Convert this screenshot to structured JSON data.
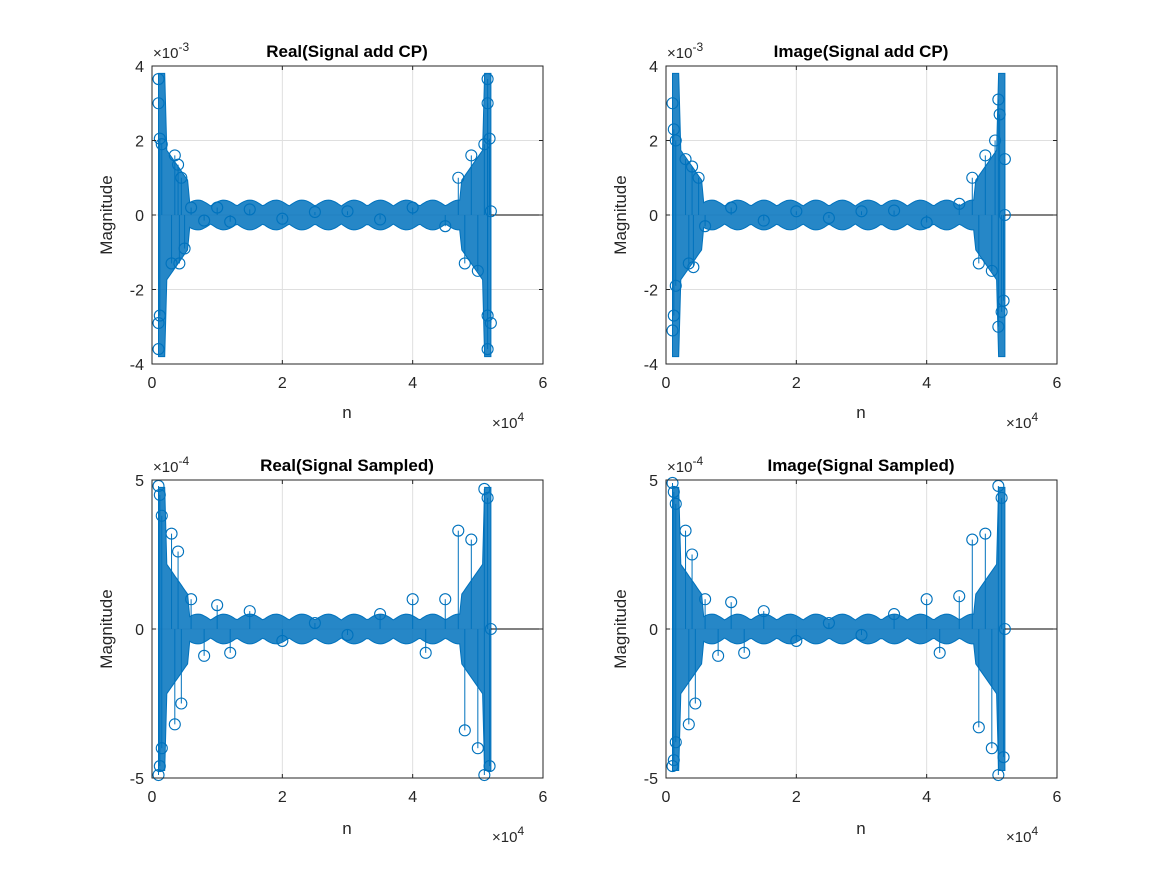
{
  "chart_data": [
    {
      "type": "scatter",
      "title": "Real(Signal add CP)",
      "xlabel": "n",
      "ylabel": "Magnitude",
      "xlim": [
        0,
        6
      ],
      "ylim": [
        -4,
        4
      ],
      "x_multiplier": "×10",
      "x_exponent": "4",
      "y_multiplier": "×10",
      "y_exponent": "-3",
      "xticks": [
        "0",
        "2",
        "4",
        "6"
      ],
      "yticks": [
        "-4",
        "-2",
        "0",
        "2",
        "4"
      ],
      "grid": true,
      "series": [
        {
          "values": [
            [
              0.1,
              3.65
            ],
            [
              0.1,
              -3.6
            ],
            [
              0.1,
              3.0
            ],
            [
              0.1,
              -2.9
            ],
            [
              0.12,
              2.05
            ],
            [
              0.12,
              -2.7
            ],
            [
              0.15,
              1.9
            ],
            [
              0.3,
              -1.3
            ],
            [
              0.35,
              1.6
            ],
            [
              0.4,
              1.35
            ],
            [
              0.42,
              -1.3
            ],
            [
              0.45,
              1.0
            ],
            [
              0.5,
              -0.9
            ],
            [
              0.6,
              0.2
            ],
            [
              0.8,
              -0.15
            ],
            [
              1.0,
              0.2
            ],
            [
              1.2,
              -0.18
            ],
            [
              1.5,
              0.15
            ],
            [
              2.0,
              -0.1
            ],
            [
              2.5,
              0.08
            ],
            [
              3.0,
              0.1
            ],
            [
              3.5,
              -0.12
            ],
            [
              4.0,
              0.2
            ],
            [
              4.5,
              -0.3
            ],
            [
              4.7,
              1.0
            ],
            [
              4.8,
              -1.3
            ],
            [
              4.9,
              1.6
            ],
            [
              5.0,
              -1.5
            ],
            [
              5.1,
              1.9
            ],
            [
              5.15,
              3.65
            ],
            [
              5.15,
              -3.6
            ],
            [
              5.15,
              3.0
            ],
            [
              5.15,
              -2.7
            ],
            [
              5.18,
              2.05
            ],
            [
              5.2,
              -2.9
            ],
            [
              5.2,
              0.1
            ]
          ]
        }
      ]
    },
    {
      "type": "scatter",
      "title": "Image(Signal add CP)",
      "xlabel": "n",
      "ylabel": "Magnitude",
      "xlim": [
        0,
        6
      ],
      "ylim": [
        -4,
        4
      ],
      "x_multiplier": "×10",
      "x_exponent": "4",
      "y_multiplier": "×10",
      "y_exponent": "-3",
      "xticks": [
        "0",
        "2",
        "4",
        "6"
      ],
      "yticks": [
        "-4",
        "-2",
        "0",
        "2",
        "4"
      ],
      "grid": true,
      "series": [
        {
          "values": [
            [
              0.1,
              3.0
            ],
            [
              0.1,
              -3.1
            ],
            [
              0.12,
              2.3
            ],
            [
              0.12,
              -2.7
            ],
            [
              0.15,
              2.0
            ],
            [
              0.15,
              -1.9
            ],
            [
              0.3,
              1.5
            ],
            [
              0.35,
              -1.3
            ],
            [
              0.4,
              1.3
            ],
            [
              0.42,
              -1.4
            ],
            [
              0.5,
              1.0
            ],
            [
              0.6,
              -0.3
            ],
            [
              1.0,
              0.2
            ],
            [
              1.5,
              -0.15
            ],
            [
              2.0,
              0.1
            ],
            [
              2.5,
              -0.08
            ],
            [
              3.0,
              0.1
            ],
            [
              3.5,
              0.12
            ],
            [
              4.0,
              -0.2
            ],
            [
              4.5,
              0.3
            ],
            [
              4.7,
              1.0
            ],
            [
              4.8,
              -1.3
            ],
            [
              4.9,
              1.6
            ],
            [
              5.0,
              -1.5
            ],
            [
              5.05,
              2.0
            ],
            [
              5.1,
              3.1
            ],
            [
              5.1,
              -3.0
            ],
            [
              5.12,
              2.7
            ],
            [
              5.15,
              -2.6
            ],
            [
              5.18,
              -2.3
            ],
            [
              5.2,
              1.5
            ],
            [
              5.2,
              0.0
            ]
          ]
        }
      ]
    },
    {
      "type": "scatter",
      "title": "Real(Signal Sampled)",
      "xlabel": "n",
      "ylabel": "Magnitude",
      "xlim": [
        0,
        6
      ],
      "ylim": [
        -5,
        5
      ],
      "x_multiplier": "×10",
      "x_exponent": "4",
      "y_multiplier": "×10",
      "y_exponent": "-4",
      "xticks": [
        "0",
        "2",
        "4",
        "6"
      ],
      "yticks": [
        "-5",
        "0",
        "5"
      ],
      "grid": true,
      "series": [
        {
          "values": [
            [
              0.1,
              4.8
            ],
            [
              0.1,
              -4.9
            ],
            [
              0.12,
              4.5
            ],
            [
              0.12,
              -4.6
            ],
            [
              0.15,
              3.8
            ],
            [
              0.15,
              -4.0
            ],
            [
              0.3,
              3.2
            ],
            [
              0.35,
              -3.2
            ],
            [
              0.4,
              2.6
            ],
            [
              0.45,
              -2.5
            ],
            [
              0.6,
              1.0
            ],
            [
              0.8,
              -0.9
            ],
            [
              1.0,
              0.8
            ],
            [
              1.2,
              -0.8
            ],
            [
              1.5,
              0.6
            ],
            [
              2.0,
              -0.4
            ],
            [
              2.5,
              0.2
            ],
            [
              3.0,
              -0.2
            ],
            [
              3.5,
              0.5
            ],
            [
              4.0,
              1.0
            ],
            [
              4.2,
              -0.8
            ],
            [
              4.5,
              1.0
            ],
            [
              4.7,
              3.3
            ],
            [
              4.8,
              -3.4
            ],
            [
              4.9,
              3.0
            ],
            [
              5.0,
              -4.0
            ],
            [
              5.1,
              4.7
            ],
            [
              5.1,
              -4.9
            ],
            [
              5.15,
              4.4
            ],
            [
              5.18,
              -4.6
            ],
            [
              5.2,
              0.0
            ]
          ]
        }
      ]
    },
    {
      "type": "scatter",
      "title": "Image(Signal Sampled)",
      "xlabel": "n",
      "ylabel": "Magnitude",
      "xlim": [
        0,
        6
      ],
      "ylim": [
        -5,
        5
      ],
      "x_multiplier": "×10",
      "x_exponent": "4",
      "y_multiplier": "×10",
      "y_exponent": "-4",
      "xticks": [
        "0",
        "2",
        "4",
        "6"
      ],
      "yticks": [
        "-5",
        "0",
        "5"
      ],
      "grid": true,
      "series": [
        {
          "values": [
            [
              0.1,
              4.9
            ],
            [
              0.1,
              -4.6
            ],
            [
              0.12,
              4.6
            ],
            [
              0.12,
              -4.4
            ],
            [
              0.15,
              4.2
            ],
            [
              0.15,
              -3.8
            ],
            [
              0.3,
              3.3
            ],
            [
              0.35,
              -3.2
            ],
            [
              0.4,
              2.5
            ],
            [
              0.45,
              -2.5
            ],
            [
              0.6,
              1.0
            ],
            [
              0.8,
              -0.9
            ],
            [
              1.0,
              0.9
            ],
            [
              1.2,
              -0.8
            ],
            [
              1.5,
              0.6
            ],
            [
              2.0,
              -0.4
            ],
            [
              2.5,
              0.2
            ],
            [
              3.0,
              -0.2
            ],
            [
              3.5,
              0.5
            ],
            [
              4.0,
              1.0
            ],
            [
              4.2,
              -0.8
            ],
            [
              4.5,
              1.1
            ],
            [
              4.7,
              3.0
            ],
            [
              4.8,
              -3.3
            ],
            [
              4.9,
              3.2
            ],
            [
              5.0,
              -4.0
            ],
            [
              5.1,
              4.8
            ],
            [
              5.1,
              -4.9
            ],
            [
              5.15,
              4.4
            ],
            [
              5.18,
              -4.3
            ],
            [
              5.2,
              0.0
            ]
          ]
        }
      ]
    }
  ],
  "colors": {
    "marker": "#0072BD",
    "axis": "#262626",
    "grid": "#dfdfdf",
    "zero_line": "#000000"
  }
}
